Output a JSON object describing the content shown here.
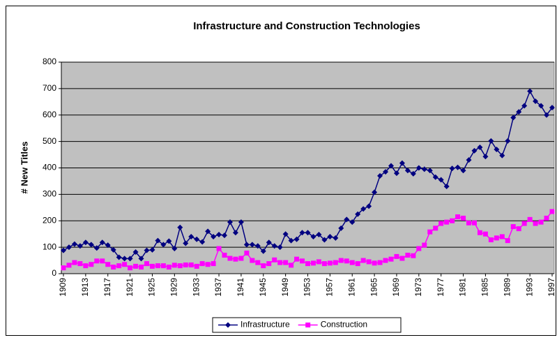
{
  "chart_data": {
    "type": "line",
    "title": "Infrastructure and Construction Technologies",
    "y_label": "# New Titles",
    "x": [
      1909,
      1910,
      1911,
      1912,
      1913,
      1914,
      1915,
      1916,
      1917,
      1918,
      1919,
      1920,
      1921,
      1922,
      1923,
      1924,
      1925,
      1926,
      1927,
      1928,
      1929,
      1930,
      1931,
      1932,
      1933,
      1934,
      1935,
      1936,
      1937,
      1938,
      1939,
      1940,
      1941,
      1942,
      1943,
      1944,
      1945,
      1946,
      1947,
      1948,
      1949,
      1950,
      1951,
      1952,
      1953,
      1954,
      1955,
      1956,
      1957,
      1958,
      1959,
      1960,
      1961,
      1962,
      1963,
      1964,
      1965,
      1966,
      1967,
      1968,
      1969,
      1970,
      1971,
      1972,
      1973,
      1974,
      1975,
      1976,
      1977,
      1978,
      1979,
      1980,
      1981,
      1982,
      1983,
      1984,
      1985,
      1986,
      1987,
      1988,
      1989,
      1990,
      1991,
      1992,
      1993,
      1994,
      1995,
      1996,
      1997
    ],
    "series": [
      {
        "name": "Infrastructure",
        "color": "#000080",
        "marker": "diamond",
        "values": [
          88,
          100,
          112,
          105,
          118,
          110,
          97,
          118,
          108,
          90,
          62,
          57,
          57,
          82,
          57,
          88,
          90,
          125,
          110,
          123,
          95,
          175,
          115,
          140,
          130,
          120,
          160,
          140,
          148,
          145,
          195,
          155,
          195,
          110,
          110,
          105,
          85,
          118,
          105,
          100,
          150,
          125,
          130,
          155,
          155,
          140,
          148,
          128,
          140,
          135,
          172,
          205,
          195,
          225,
          245,
          255,
          308,
          370,
          385,
          408,
          380,
          418,
          390,
          378,
          400,
          395,
          390,
          365,
          355,
          330,
          398,
          402,
          390,
          430,
          465,
          478,
          443,
          502,
          470,
          447,
          502,
          590,
          612,
          635,
          690,
          652,
          635,
          600,
          628
        ]
      },
      {
        "name": "Construction",
        "color": "#ff00ff",
        "marker": "square",
        "values": [
          22,
          32,
          42,
          38,
          30,
          35,
          48,
          48,
          35,
          25,
          30,
          35,
          22,
          28,
          25,
          38,
          28,
          30,
          30,
          25,
          32,
          30,
          33,
          33,
          28,
          38,
          35,
          38,
          95,
          70,
          58,
          55,
          58,
          78,
          50,
          42,
          30,
          38,
          52,
          42,
          42,
          32,
          55,
          48,
          38,
          40,
          45,
          38,
          40,
          42,
          50,
          48,
          42,
          38,
          50,
          45,
          40,
          42,
          50,
          55,
          65,
          58,
          70,
          68,
          95,
          108,
          158,
          172,
          190,
          195,
          200,
          215,
          210,
          192,
          192,
          155,
          150,
          128,
          135,
          140,
          125,
          178,
          170,
          190,
          205,
          190,
          195,
          210,
          235
        ]
      }
    ],
    "xlim": [
      1909,
      1997
    ],
    "xticks": [
      1909,
      1913,
      1917,
      1921,
      1925,
      1929,
      1933,
      1937,
      1941,
      1945,
      1949,
      1953,
      1957,
      1961,
      1965,
      1969,
      1973,
      1977,
      1981,
      1985,
      1989,
      1993,
      1997
    ],
    "ylim": [
      0,
      800
    ],
    "yticks": [
      0,
      100,
      200,
      300,
      400,
      500,
      600,
      700,
      800
    ],
    "grid": true,
    "plot_background": "#c0c0c0",
    "legend": "bottom"
  }
}
